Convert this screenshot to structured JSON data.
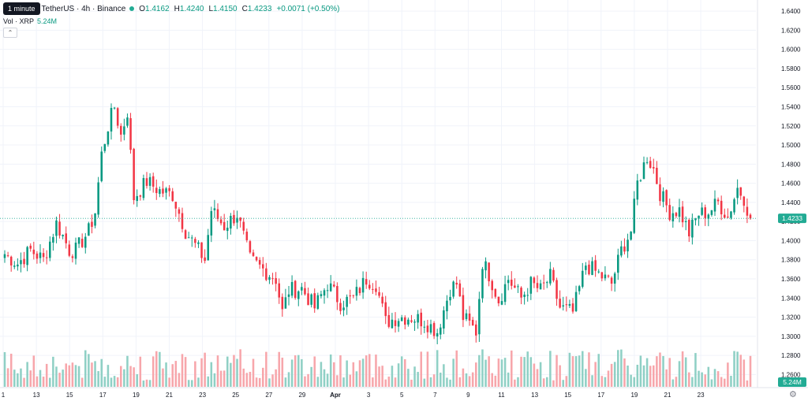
{
  "header": {
    "tooltip": "1 minute",
    "symbol": "TetherUS · 4h · Binance",
    "open_label": "O",
    "open": "1.4162",
    "high_label": "H",
    "high": "1.4240",
    "low_label": "L",
    "low": "1.4150",
    "close_label": "C",
    "close": "1.4233",
    "change": "+0.0071 (+0.50%)",
    "volume_label": "Vol · XRP",
    "volume_value": "5.24M"
  },
  "colors": {
    "up": "#089981",
    "down": "#f23645",
    "up_vol": "#8fd0c5",
    "down_vol": "#f7a6ab",
    "last_price": "#22ab94"
  },
  "chart_data": {
    "type": "candlestick",
    "symbol": "TetherUS",
    "timeframe": "4h",
    "exchange": "Binance",
    "y_ticks": [
      "1.6400",
      "1.6200",
      "1.6000",
      "1.5800",
      "1.5600",
      "1.5400",
      "1.5200",
      "1.5000",
      "1.4800",
      "1.4600",
      "1.4400",
      "1.4200",
      "1.4000",
      "1.3800",
      "1.3600",
      "1.3400",
      "1.3200",
      "1.3000",
      "1.2800",
      "1.2600"
    ],
    "ylim": [
      1.248,
      1.645
    ],
    "x_ticks": [
      "1",
      "13",
      "15",
      "17",
      "19",
      "21",
      "23",
      "25",
      "27",
      "29",
      "Apr",
      "3",
      "5",
      "7",
      "9",
      "11",
      "13",
      "15",
      "17",
      "19",
      "21",
      "23"
    ],
    "last_price": "1.4233",
    "volume_last": "5.24M",
    "anchors": [
      [
        0,
        1.386
      ],
      [
        4,
        1.376
      ],
      [
        8,
        1.39
      ],
      [
        12,
        1.38
      ],
      [
        16,
        1.418
      ],
      [
        18,
        1.405
      ],
      [
        20,
        1.39
      ],
      [
        22,
        1.39
      ],
      [
        26,
        1.41
      ],
      [
        28,
        1.43
      ],
      [
        30,
        1.49
      ],
      [
        32,
        1.52
      ],
      [
        34,
        1.54
      ],
      [
        36,
        1.51
      ],
      [
        38,
        1.535
      ],
      [
        40,
        1.445
      ],
      [
        44,
        1.462
      ],
      [
        48,
        1.452
      ],
      [
        52,
        1.448
      ],
      [
        56,
        1.41
      ],
      [
        60,
        1.39
      ],
      [
        62,
        1.38
      ],
      [
        64,
        1.432
      ],
      [
        68,
        1.415
      ],
      [
        72,
        1.428
      ],
      [
        76,
        1.38
      ],
      [
        80,
        1.37
      ],
      [
        84,
        1.36
      ],
      [
        86,
        1.325
      ],
      [
        88,
        1.348
      ],
      [
        92,
        1.35
      ],
      [
        96,
        1.33
      ],
      [
        100,
        1.355
      ],
      [
        104,
        1.335
      ],
      [
        108,
        1.34
      ],
      [
        112,
        1.36
      ],
      [
        115,
        1.355
      ],
      [
        118,
        1.315
      ],
      [
        122,
        1.32
      ],
      [
        126,
        1.32
      ],
      [
        130,
        1.316
      ],
      [
        134,
        1.305
      ],
      [
        138,
        1.35
      ],
      [
        140,
        1.355
      ],
      [
        142,
        1.32
      ],
      [
        146,
        1.305
      ],
      [
        148,
        1.378
      ],
      [
        150,
        1.365
      ],
      [
        153,
        1.338
      ],
      [
        156,
        1.36
      ],
      [
        160,
        1.34
      ],
      [
        163,
        1.355
      ],
      [
        166,
        1.348
      ],
      [
        169,
        1.362
      ],
      [
        172,
        1.33
      ],
      [
        176,
        1.325
      ],
      [
        180,
        1.375
      ],
      [
        184,
        1.365
      ],
      [
        188,
        1.355
      ],
      [
        191,
        1.39
      ],
      [
        194,
        1.41
      ],
      [
        196,
        1.46
      ],
      [
        199,
        1.488
      ],
      [
        201,
        1.475
      ],
      [
        203,
        1.45
      ],
      [
        206,
        1.43
      ],
      [
        209,
        1.432
      ],
      [
        212,
        1.408
      ],
      [
        215,
        1.428
      ],
      [
        218,
        1.43
      ],
      [
        221,
        1.44
      ],
      [
        224,
        1.425
      ],
      [
        227,
        1.455
      ],
      [
        229,
        1.445
      ],
      [
        231,
        1.423
      ]
    ]
  }
}
